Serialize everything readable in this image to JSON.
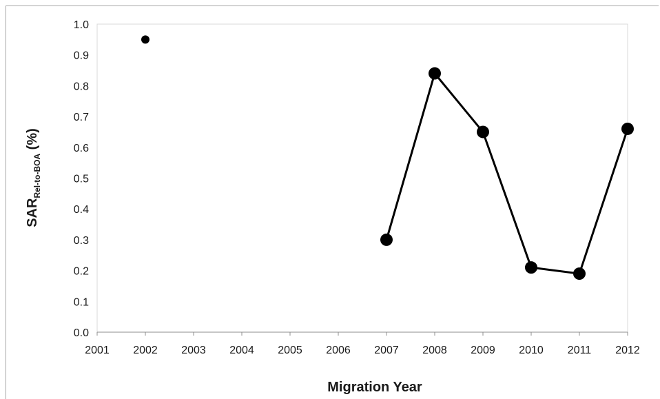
{
  "chart_data": {
    "type": "scatter",
    "title": "",
    "xlabel": "Migration Year",
    "ylabel_main": "SAR",
    "ylabel_sub": "Rel-to-BOA",
    "ylabel_suffix": " (%)",
    "xlim": [
      2001,
      2012
    ],
    "ylim": [
      0.0,
      1.0
    ],
    "xticks": [
      "2001",
      "2002",
      "2003",
      "2004",
      "2005",
      "2006",
      "2007",
      "2008",
      "2009",
      "2010",
      "2011",
      "2012"
    ],
    "yticks": [
      "0.0",
      "0.1",
      "0.2",
      "0.3",
      "0.4",
      "0.5",
      "0.6",
      "0.7",
      "0.8",
      "0.9",
      "1.0"
    ],
    "grid": false,
    "legend": "none",
    "marker_color": "#000000",
    "series": [
      {
        "points": [
          {
            "x": 2002,
            "y": 0.95
          },
          {
            "x": 2007,
            "y": 0.3
          },
          {
            "x": 2008,
            "y": 0.84
          },
          {
            "x": 2009,
            "y": 0.65
          },
          {
            "x": 2010,
            "y": 0.21
          },
          {
            "x": 2011,
            "y": 0.19
          },
          {
            "x": 2012,
            "y": 0.66
          }
        ],
        "connected_from_x": 2007
      }
    ]
  }
}
